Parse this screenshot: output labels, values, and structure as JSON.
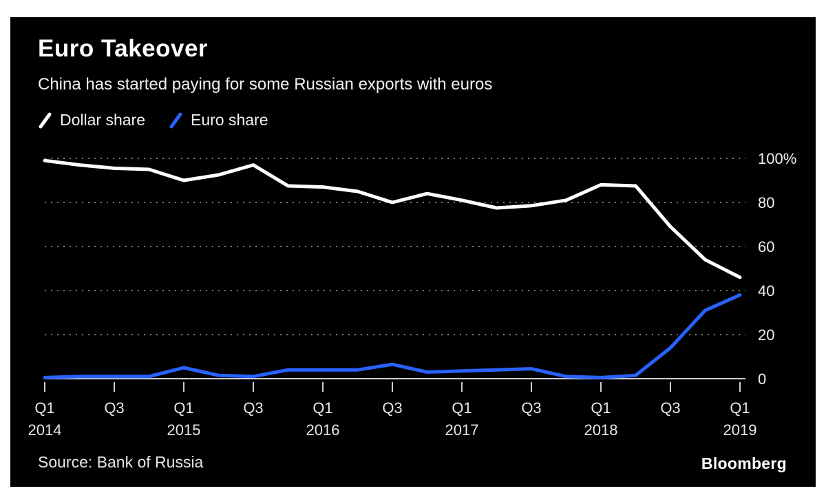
{
  "header": {
    "title": "Euro Takeover",
    "subtitle": "China has started paying for some Russian exports with euros"
  },
  "legend": {
    "items": [
      {
        "label": "Dollar share",
        "color": "#ffffff"
      },
      {
        "label": "Euro share",
        "color": "#2962ff"
      }
    ]
  },
  "chart_data": {
    "type": "line",
    "x": [
      "Q1 2014",
      "Q2 2014",
      "Q3 2014",
      "Q4 2014",
      "Q1 2015",
      "Q2 2015",
      "Q3 2015",
      "Q4 2015",
      "Q1 2016",
      "Q2 2016",
      "Q3 2016",
      "Q4 2016",
      "Q1 2017",
      "Q2 2017",
      "Q3 2017",
      "Q4 2017",
      "Q1 2018",
      "Q2 2018",
      "Q3 2018",
      "Q4 2018",
      "Q1 2019"
    ],
    "series": [
      {
        "name": "Dollar share",
        "color": "#ffffff",
        "values": [
          99,
          97,
          95.5,
          95,
          90,
          92.5,
          97,
          87.5,
          87,
          85,
          80,
          84,
          81,
          77.5,
          78.5,
          81,
          88,
          87.5,
          69,
          54,
          46
        ]
      },
      {
        "name": "Euro share",
        "color": "#2962ff",
        "values": [
          0.5,
          1,
          1,
          1,
          5,
          1.5,
          1,
          4,
          4,
          4,
          6.5,
          3,
          3.5,
          4,
          4.5,
          1,
          0.5,
          1.5,
          14,
          31,
          38
        ]
      }
    ],
    "ylim": [
      0,
      100
    ],
    "y_ticks": [
      {
        "value": 0,
        "label": "0"
      },
      {
        "value": 20,
        "label": "20"
      },
      {
        "value": 40,
        "label": "40"
      },
      {
        "value": 60,
        "label": "60"
      },
      {
        "value": 80,
        "label": "80"
      },
      {
        "value": 100,
        "label": "100%"
      }
    ],
    "x_ticks": [
      {
        "index": 0,
        "label": "Q1",
        "year": "2014"
      },
      {
        "index": 2,
        "label": "Q3"
      },
      {
        "index": 4,
        "label": "Q1",
        "year": "2015"
      },
      {
        "index": 6,
        "label": "Q3"
      },
      {
        "index": 8,
        "label": "Q1",
        "year": "2016"
      },
      {
        "index": 10,
        "label": "Q3"
      },
      {
        "index": 12,
        "label": "Q1",
        "year": "2017"
      },
      {
        "index": 14,
        "label": "Q3"
      },
      {
        "index": 16,
        "label": "Q1",
        "year": "2018"
      },
      {
        "index": 18,
        "label": "Q3"
      },
      {
        "index": 20,
        "label": "Q1",
        "year": "2019"
      }
    ],
    "grid": "horizontal-dotted",
    "legend_position": "top-left",
    "axis_label_side": "right"
  },
  "footer": {
    "source": "Source: Bank of Russia",
    "brand": "Bloomberg"
  }
}
